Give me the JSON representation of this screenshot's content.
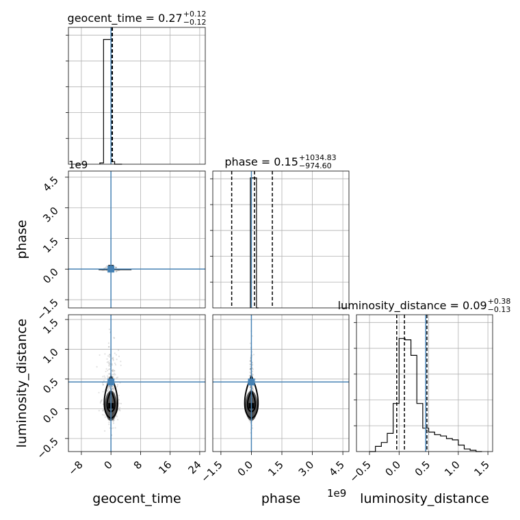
{
  "chart_data": {
    "type": "corner",
    "parameters": [
      {
        "name": "geocent_time",
        "title_prefix": "geocent_time = 0.27",
        "title_plus": "+0.12",
        "title_minus": "−0.12"
      },
      {
        "name": "phase",
        "title_prefix": "phase = 0.15",
        "title_plus": "+1034.83",
        "title_minus": "−974.60"
      },
      {
        "name": "luminosity_distance",
        "title_prefix": "luminosity_distance = 0.09",
        "title_plus": "+0.38",
        "title_minus": "−0.13"
      }
    ],
    "axes": {
      "geocent_time": {
        "range": [
          -11.5,
          25.5
        ],
        "ticks": [
          -8,
          0,
          8,
          16,
          24
        ],
        "tick_labels": [
          "−8",
          "0",
          "8",
          "16",
          "24"
        ]
      },
      "phase": {
        "range": [
          -1.9,
          4.8
        ],
        "ticks": [
          -1.5,
          0.0,
          1.5,
          3.0,
          4.5
        ],
        "tick_labels": [
          "−1.5",
          "0.0",
          "1.5",
          "3.0",
          "4.5"
        ],
        "multiplier": "1e9"
      },
      "luminosity_distance": {
        "range": [
          -0.72,
          1.58
        ],
        "ticks": [
          -0.5,
          0.0,
          0.5,
          1.0,
          1.5
        ],
        "tick_labels": [
          "−0.5",
          "0.0",
          "0.5",
          "1.0",
          "1.5"
        ]
      }
    },
    "truth_values": {
      "geocent_time": 0.0,
      "phase": 0.0,
      "luminosity_distance": 0.45
    },
    "histograms": {
      "geocent_time": {
        "bins": [
          -3.0,
          -2.0,
          -1.0,
          0.0,
          1.0,
          2.0,
          3.0
        ],
        "counts": [
          0.01,
          0.96,
          0.96,
          0.02,
          0.0,
          0.0
        ],
        "quantiles": [
          0.15,
          0.27,
          0.39
        ]
      },
      "phase": {
        "bins": [
          -0.05,
          0.05,
          0.15,
          0.25,
          0.35
        ],
        "counts": [
          1.0,
          1.0,
          1.0,
          0.0
        ],
        "quantiles": [
          -0.97,
          0.15,
          1.03
        ]
      },
      "luminosity_distance": {
        "bins": [
          -0.5,
          -0.4,
          -0.3,
          -0.2,
          -0.1,
          0.0,
          0.1,
          0.2,
          0.3,
          0.4,
          0.5,
          0.6,
          0.7,
          0.8,
          0.9,
          1.0,
          1.1,
          1.2,
          1.3,
          1.4
        ],
        "counts": [
          0.0,
          0.04,
          0.07,
          0.14,
          0.37,
          0.87,
          0.86,
          0.74,
          0.37,
          0.18,
          0.15,
          0.13,
          0.12,
          0.1,
          0.09,
          0.05,
          0.02,
          0.01,
          0.0
        ],
        "quantiles": [
          -0.04,
          0.09,
          0.47
        ]
      }
    },
    "grid": true
  }
}
